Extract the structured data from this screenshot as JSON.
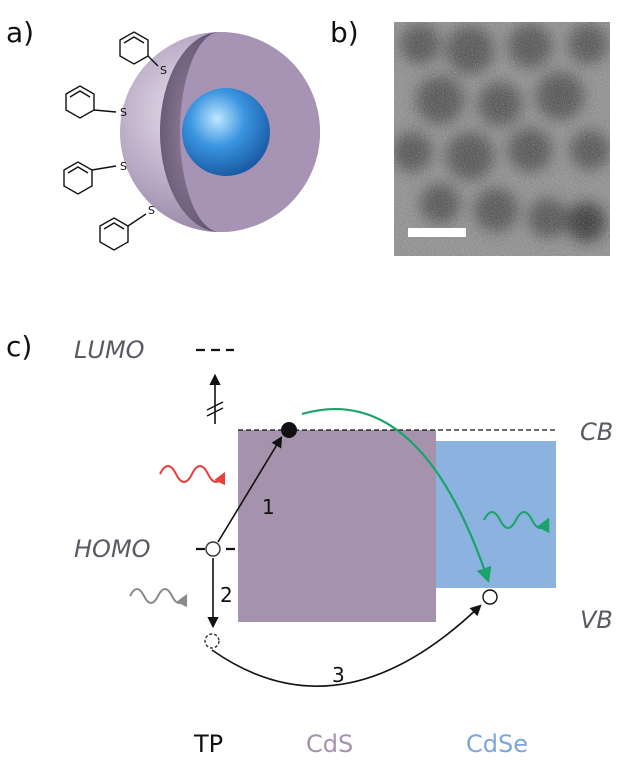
{
  "panels": {
    "a": "a)",
    "b": "b)",
    "c": "c)"
  },
  "ligand": {
    "atom": "S",
    "count": 4
  },
  "energy_levels": {
    "lumo": "LUMO",
    "homo": "HOMO",
    "cb": "CB",
    "vb": "VB"
  },
  "process_numbers": {
    "p1": "1",
    "p2": "2",
    "p3": "3"
  },
  "materials": {
    "tp": "TP",
    "cds": "CdS",
    "cdse": "CdSe"
  },
  "colors": {
    "cds": "#a593ad",
    "cdse": "#8cb2df",
    "shell": "#b9a9c4",
    "core": "#2e86d9",
    "green_arrow": "#1aa36a",
    "red_wave": "#e8403a",
    "grey_wave": "#8a8a8a",
    "cdse_label": "#7fa6d6",
    "cds_label": "#a593ad",
    "tp_label": "#111111"
  }
}
